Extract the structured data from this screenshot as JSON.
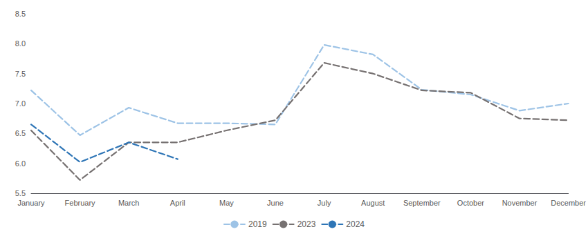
{
  "chart_data": {
    "type": "line",
    "categories": [
      "January",
      "February",
      "March",
      "April",
      "May",
      "June",
      "July",
      "August",
      "September",
      "October",
      "November",
      "December"
    ],
    "series": [
      {
        "name": "2019",
        "color": "#9dc3e6",
        "values": [
          7.22,
          6.47,
          6.93,
          6.67,
          6.67,
          6.65,
          7.98,
          7.82,
          7.23,
          7.15,
          6.88,
          7.0
        ]
      },
      {
        "name": "2023",
        "color": "#767171",
        "values": [
          6.55,
          5.72,
          6.35,
          6.35,
          6.55,
          6.72,
          7.68,
          7.5,
          7.22,
          7.18,
          6.75,
          6.72
        ]
      },
      {
        "name": "2024",
        "color": "#2e75b6",
        "values": [
          6.65,
          6.02,
          6.35,
          6.07,
          null,
          null,
          null,
          null,
          null,
          null,
          null,
          null
        ]
      }
    ],
    "ylim": [
      5.5,
      8.5
    ],
    "yticks": [
      5.5,
      {
        "value": 6.0,
        "label": "6.0"
      },
      6.5,
      {
        "value": 7.0,
        "label": "7.0"
      },
      7.5,
      {
        "value": 8.0,
        "label": "8.0"
      },
      8.5
    ],
    "grid": false,
    "legend": "bottom",
    "line_style": "dashed",
    "marker": "none"
  }
}
